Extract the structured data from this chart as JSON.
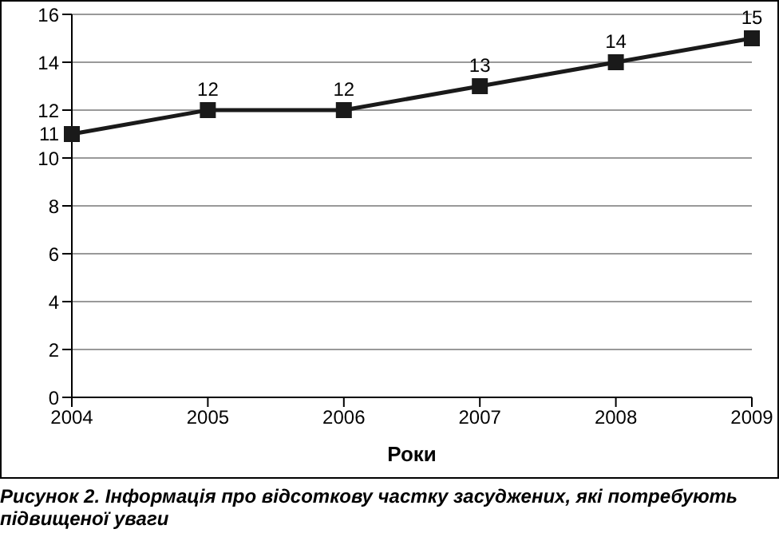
{
  "chart_data": {
    "type": "line",
    "xlabel": "Роки",
    "categories": [
      "2004",
      "2005",
      "2006",
      "2007",
      "2008",
      "2009"
    ],
    "series": [
      {
        "color": "#1a1a1a",
        "values": [
          11,
          12,
          12,
          13,
          14,
          15
        ]
      }
    ],
    "ylim": [
      0,
      16
    ],
    "yticks": [
      0,
      2,
      4,
      6,
      8,
      10,
      12,
      14,
      16
    ],
    "grid": "y",
    "legend": false,
    "marker": "square",
    "line_style": "solid",
    "data_labels": true,
    "annotations": [
      "Рисунок 2. Інформація про відсоткову частку засуджених, які потребують підвищеної уваги"
    ]
  }
}
